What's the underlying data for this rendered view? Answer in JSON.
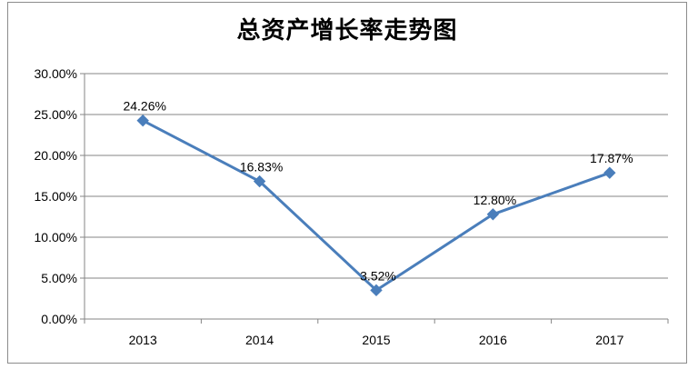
{
  "chart_data": {
    "type": "line",
    "title": "总资产增长率走势图",
    "categories": [
      "2013",
      "2014",
      "2015",
      "2016",
      "2017"
    ],
    "series": [
      {
        "values": [
          24.26,
          16.83,
          3.52,
          12.8,
          17.87
        ],
        "data_labels": [
          "24.26%",
          "16.83%",
          "3.52%",
          "12.80%",
          "17.87%"
        ],
        "color": "#4a7ebb",
        "marker": "diamond"
      }
    ],
    "y_ticks": [
      0,
      5,
      10,
      15,
      20,
      25,
      30
    ],
    "y_tick_labels": [
      "0.00%",
      "5.00%",
      "10.00%",
      "15.00%",
      "20.00%",
      "25.00%",
      "30.00%"
    ],
    "ylim": [
      0,
      30
    ],
    "grid": true,
    "legend": "none",
    "colors": {
      "line": "#4a7ebb",
      "grid": "#868686",
      "frame": "#8c8c8c"
    }
  }
}
